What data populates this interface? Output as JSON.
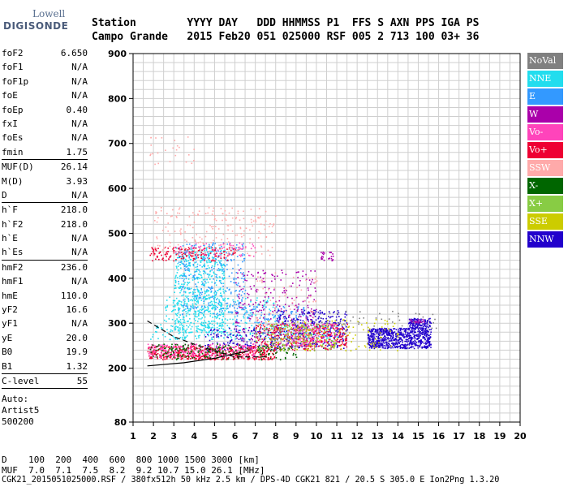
{
  "logo": {
    "line1": "Lowell",
    "line2": "DIGISONDE"
  },
  "header": {
    "row1": "Station        YYYY DAY   DDD HHMMSS P1  FFS S AXN PPS IGA PS",
    "row2": "Campo Grande   2015 Feb20 051 025000 RSF 005 2 713 100 03+ 36"
  },
  "params": [
    {
      "name": "foF2",
      "value": "6.650"
    },
    {
      "name": "foF1",
      "value": "N/A"
    },
    {
      "name": "foF1p",
      "value": "N/A"
    },
    {
      "name": "foE",
      "value": "N/A"
    },
    {
      "name": "foEp",
      "value": "0.40"
    },
    {
      "name": "fxI",
      "value": "N/A"
    },
    {
      "name": "foEs",
      "value": "N/A"
    },
    {
      "name": "fmin",
      "value": "1.75",
      "sep": true
    },
    {
      "name": "MUF(D)",
      "value": "26.14"
    },
    {
      "name": "M(D)",
      "value": "3.93"
    },
    {
      "name": "D",
      "value": "N/A",
      "sep": true
    },
    {
      "name": "h`F",
      "value": "218.0"
    },
    {
      "name": "h`F2",
      "value": "218.0"
    },
    {
      "name": "h`E",
      "value": "N/A"
    },
    {
      "name": "h`Es",
      "value": "N/A",
      "sep": true
    },
    {
      "name": "hmF2",
      "value": "236.0"
    },
    {
      "name": "hmF1",
      "value": "N/A"
    },
    {
      "name": "hmE",
      "value": "110.0"
    },
    {
      "name": "yF2",
      "value": "16.6"
    },
    {
      "name": "yF1",
      "value": "N/A"
    },
    {
      "name": "yE",
      "value": "20.0"
    },
    {
      "name": "B0",
      "value": "19.9"
    },
    {
      "name": "B1",
      "value": "1.32",
      "sep": true
    },
    {
      "name": "C-level",
      "value": "55",
      "sep": true
    }
  ],
  "auto": {
    "line1": "Auto:",
    "line2": "Artist5",
    "line3": "500200"
  },
  "legend": [
    {
      "label": "NoVal",
      "color": "#808080"
    },
    {
      "label": "NNE",
      "color": "#22ddee"
    },
    {
      "label": "E",
      "color": "#3399ff"
    },
    {
      "label": "W",
      "color": "#aa00aa"
    },
    {
      "label": "Vo-",
      "color": "#ff44bb"
    },
    {
      "label": "Vo+",
      "color": "#ee0033"
    },
    {
      "label": "SSW",
      "color": "#ffaaaa"
    },
    {
      "label": "X-",
      "color": "#006600"
    },
    {
      "label": "X+",
      "color": "#88cc44"
    },
    {
      "label": "SSE",
      "color": "#cccc00"
    },
    {
      "label": "NNW",
      "color": "#2200cc"
    }
  ],
  "footer": {
    "d_row": "D    100  200  400  600  800 1000 1500 3000 [km]",
    "muf_row": "MUF  7.0  7.1  7.5  8.2  9.2 10.7 15.0 26.1 [MHz]",
    "filename": "CGK21_2015051025000.RSF / 380fx512h 50 kHz 2.5 km / DPS-4D CGK21 821 / 20.5 S 305.0 E Ion2Png 1.3.20"
  },
  "chart_data": {
    "type": "scatter",
    "title": "",
    "xlabel": "",
    "ylabel": "",
    "xlim": [
      1,
      20
    ],
    "ylim": [
      80,
      900
    ],
    "x_ticks": [
      1,
      2,
      3,
      4,
      5,
      6,
      7,
      8,
      9,
      10,
      11,
      12,
      13,
      14,
      15,
      16,
      17,
      18,
      19,
      20
    ],
    "y_ticks": [
      80,
      200,
      300,
      400,
      500,
      600,
      700,
      800,
      900
    ],
    "grid": true,
    "series": [
      {
        "name": "NNE",
        "color": "#22ddee",
        "clusters": [
          {
            "x": [
              3.0,
              5.5
            ],
            "y": [
              280,
              470
            ],
            "n": 600
          },
          {
            "x": [
              1.8,
              11
            ],
            "y": [
              265,
              300
            ],
            "n": 250
          },
          {
            "x": [
              2.5,
              8
            ],
            "y": [
              300,
              360
            ],
            "n": 150
          }
        ]
      },
      {
        "name": "E",
        "color": "#3399ff",
        "clusters": [
          {
            "x": [
              3.2,
              6.5
            ],
            "y": [
              320,
              480
            ],
            "n": 300
          },
          {
            "x": [
              6,
              9.5
            ],
            "y": [
              280,
              340
            ],
            "n": 120
          }
        ]
      },
      {
        "name": "NNW",
        "color": "#2200cc",
        "clusters": [
          {
            "x": [
              12.5,
              15.6
            ],
            "y": [
              245,
              290
            ],
            "n": 700
          },
          {
            "x": [
              14.5,
              15.6
            ],
            "y": [
              290,
              312
            ],
            "n": 120
          },
          {
            "x": [
              8,
              11.5
            ],
            "y": [
              245,
              330
            ],
            "n": 350
          },
          {
            "x": [
              4.5,
              8
            ],
            "y": [
              240,
              290
            ],
            "n": 150
          }
        ]
      },
      {
        "name": "W",
        "color": "#aa00aa",
        "clusters": [
          {
            "x": [
              6,
              10
            ],
            "y": [
              250,
              420
            ],
            "n": 250
          },
          {
            "x": [
              10.2,
              10.8
            ],
            "y": [
              440,
              460
            ],
            "n": 25
          },
          {
            "x": [
              14.5,
              15.3
            ],
            "y": [
              302,
              310
            ],
            "n": 20
          }
        ]
      },
      {
        "name": "Vo+",
        "color": "#ee0033",
        "clusters": [
          {
            "x": [
              1.7,
              8
            ],
            "y": [
              220,
              250
            ],
            "n": 500
          },
          {
            "x": [
              7,
              11.5
            ],
            "y": [
              240,
              300
            ],
            "n": 350
          },
          {
            "x": [
              1.8,
              6
            ],
            "y": [
              440,
              470
            ],
            "n": 150
          }
        ]
      },
      {
        "name": "Vo-",
        "color": "#ff44bb",
        "clusters": [
          {
            "x": [
              1.7,
              7
            ],
            "y": [
              225,
              255
            ],
            "n": 250
          },
          {
            "x": [
              8.5,
              11
            ],
            "y": [
              250,
              300
            ],
            "n": 150
          },
          {
            "x": [
              3,
              7
            ],
            "y": [
              450,
              480
            ],
            "n": 60
          }
        ]
      },
      {
        "name": "SSW",
        "color": "#ffaaaa",
        "clusters": [
          {
            "x": [
              2,
              8
            ],
            "y": [
              450,
              560
            ],
            "n": 200
          },
          {
            "x": [
              1.8,
              4
            ],
            "y": [
              650,
              720
            ],
            "n": 25
          },
          {
            "x": [
              7,
              10
            ],
            "y": [
              250,
              420
            ],
            "n": 100
          }
        ]
      },
      {
        "name": "X-",
        "color": "#006600",
        "clusters": [
          {
            "x": [
              1.8,
              9
            ],
            "y": [
              220,
              255
            ],
            "n": 200
          }
        ]
      },
      {
        "name": "X+",
        "color": "#88cc44",
        "clusters": [
          {
            "x": [
              7,
              11
            ],
            "y": [
              240,
              300
            ],
            "n": 150
          }
        ]
      },
      {
        "name": "SSE",
        "color": "#cccc00",
        "clusters": [
          {
            "x": [
              7.5,
              14
            ],
            "y": [
              240,
              310
            ],
            "n": 150
          }
        ]
      },
      {
        "name": "NoVal",
        "color": "#808080",
        "clusters": [
          {
            "x": [
              10,
              16
            ],
            "y": [
              290,
              330
            ],
            "n": 40
          }
        ]
      }
    ],
    "curves": [
      {
        "style": "solid",
        "x": [
          1.7,
          3.5,
          5.0,
          6.0,
          6.65
        ],
        "y": [
          205,
          212,
          222,
          232,
          238
        ]
      },
      {
        "style": "dashed",
        "x": [
          1.7,
          3.0,
          4.5,
          6.0,
          7.5
        ],
        "y": [
          305,
          270,
          245,
          225,
          225
        ]
      }
    ]
  }
}
